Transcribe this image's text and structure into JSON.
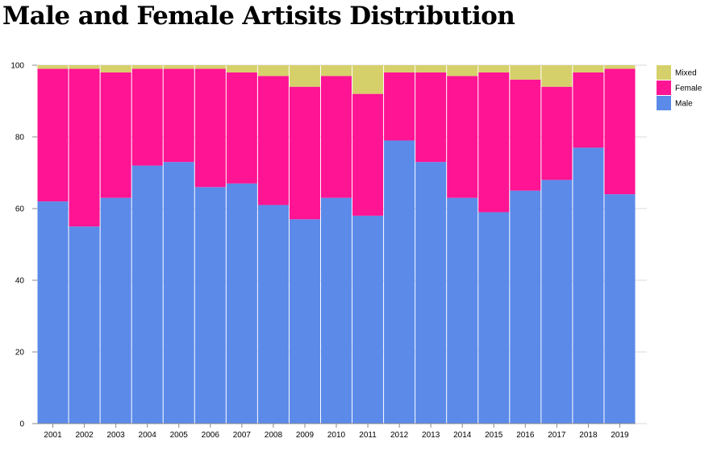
{
  "title": "Male and Female Artisits Distribution",
  "chart_data": {
    "type": "bar",
    "stacked": true,
    "title": "Male and Female Artisits Distribution",
    "xlabel": "",
    "ylabel": "",
    "ylim": [
      0,
      100
    ],
    "yticks": [
      0,
      20,
      40,
      60,
      80,
      100
    ],
    "grid": "horizontal",
    "legend_position": "top-right",
    "categories": [
      "2001",
      "2002",
      "2003",
      "2004",
      "2005",
      "2006",
      "2007",
      "2008",
      "2009",
      "2010",
      "2011",
      "2012",
      "2013",
      "2014",
      "2015",
      "2016",
      "2017",
      "2018",
      "2019"
    ],
    "series": [
      {
        "name": "Male",
        "color": "#5b8ae9",
        "values": [
          62,
          55,
          63,
          72,
          73,
          66,
          67,
          61,
          57,
          63,
          58,
          79,
          73,
          63,
          59,
          65,
          68,
          77,
          64
        ]
      },
      {
        "name": "Female",
        "color": "#ff1493",
        "values": [
          37,
          44,
          35,
          27,
          26,
          33,
          31,
          36,
          37,
          34,
          34,
          19,
          25,
          34,
          39,
          31,
          26,
          21,
          35
        ]
      },
      {
        "name": "Mixed",
        "color": "#d6d06b",
        "values": [
          1,
          1,
          2,
          1,
          1,
          1,
          2,
          3,
          6,
          3,
          8,
          2,
          2,
          3,
          2,
          4,
          6,
          2,
          1
        ]
      }
    ],
    "legend_order": [
      "Mixed",
      "Female",
      "Male"
    ]
  }
}
